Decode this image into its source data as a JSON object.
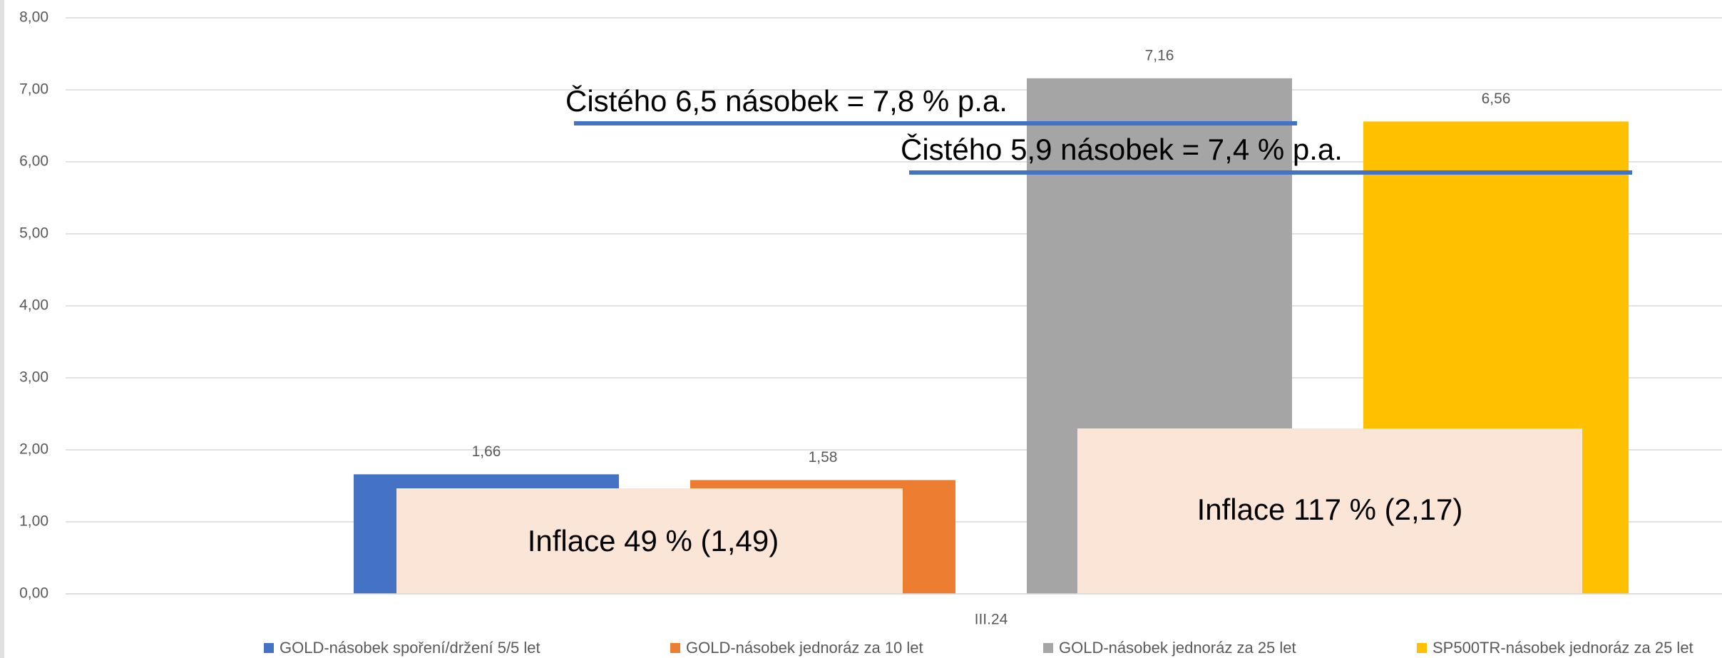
{
  "chart_data": {
    "type": "bar",
    "categories": [
      "III.24"
    ],
    "series": [
      {
        "name": "GOLD-násobek spoření/držení 5/5 let",
        "color": "#4472c4",
        "values": [
          1.66
        ],
        "value_labels": [
          "1,66"
        ]
      },
      {
        "name": "GOLD-násobek jednoráz za 10 let",
        "color": "#ed7d31",
        "values": [
          1.58
        ],
        "value_labels": [
          "1,58"
        ]
      },
      {
        "name": "GOLD-násobek jednoráz za 25 let",
        "color": "#a5a5a5",
        "values": [
          7.16
        ],
        "value_labels": [
          "7,16"
        ]
      },
      {
        "name": "SP500TR-násobek jednoráz za 25 let",
        "color": "#ffc000",
        "values": [
          6.56
        ],
        "value_labels": [
          "6,56"
        ]
      }
    ],
    "ylim": [
      0,
      8
    ],
    "yticks": [
      {
        "value": 0,
        "label": "0,00"
      },
      {
        "value": 1,
        "label": "1,00"
      },
      {
        "value": 2,
        "label": "2,00"
      },
      {
        "value": 3,
        "label": "3,00"
      },
      {
        "value": 4,
        "label": "4,00"
      },
      {
        "value": 5,
        "label": "5,00"
      },
      {
        "value": 6,
        "label": "6,00"
      },
      {
        "value": 7,
        "label": "7,00"
      },
      {
        "value": 8,
        "label": "8,00"
      }
    ],
    "grid": true,
    "annotations": [
      "Čistého 6,5 násobek = 7,8 % p.a.",
      "Čistého 5,9 násobek = 7,4 % p.a.",
      "Inflace 49 % (1,49)",
      "Inflace 117 % (2,17)"
    ]
  }
}
